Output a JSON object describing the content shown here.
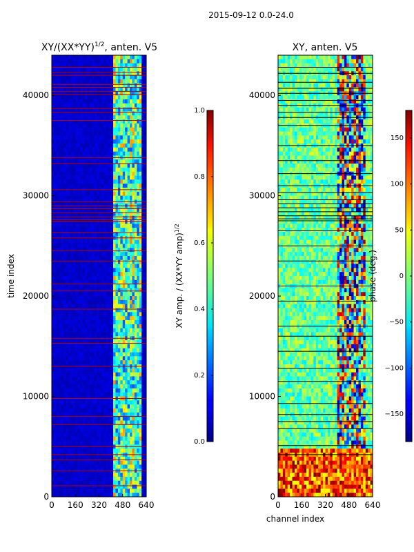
{
  "figure": {
    "suptitle": "2015-09-12 0.0-24.0"
  },
  "chart_data": [
    {
      "type": "heatmap",
      "title_main": "XY/(XX*YY)",
      "title_sup": "1/2",
      "title_rest": ", anten. V5",
      "xlabel": "",
      "ylabel": "time index",
      "xlim": [
        0,
        640
      ],
      "ylim": [
        0,
        44000
      ],
      "xticks": [
        0,
        160,
        320,
        480,
        640
      ],
      "yticks": [
        0,
        10000,
        20000,
        30000,
        40000
      ],
      "background_value": 0.05,
      "active_band_channels": [
        410,
        600
      ],
      "line_rows": [
        1100,
        2600,
        3700,
        4200,
        5000,
        7200,
        8000,
        9800,
        13000,
        15300,
        15800,
        18700,
        20500,
        21200,
        23500,
        24500,
        25800,
        26300,
        27400,
        27600,
        27900,
        28300,
        28700,
        29000,
        29400,
        30600,
        33200,
        33800,
        37500,
        38300,
        38700,
        40100,
        40400,
        40800,
        41100,
        42000,
        42300,
        42800
      ]
    },
    {
      "type": "heatmap",
      "title": "XY, anten. V5",
      "xlabel": "channel index",
      "ylabel": "",
      "xlim": [
        0,
        640
      ],
      "ylim": [
        0,
        44000
      ],
      "xticks": [
        0,
        160,
        320,
        480,
        640
      ],
      "yticks": [
        0,
        10000,
        20000,
        30000,
        40000
      ],
      "line_rows": [
        4200,
        5100,
        6800,
        7500,
        8200,
        9300,
        11500,
        12800,
        14500,
        16000,
        17000,
        19500,
        21000,
        23500,
        25000,
        26500,
        27500,
        27700,
        28000,
        28400,
        28800,
        29200,
        29600,
        30300,
        31000,
        32200,
        33500,
        35000,
        37000,
        37800,
        38300,
        39000,
        39500,
        40200,
        40700,
        41300,
        42200,
        42800
      ]
    }
  ],
  "colorbars": [
    {
      "label_main": "XY amp. / (XX*YY amp)",
      "label_sup": "1/2",
      "range": [
        0.0,
        1.0
      ],
      "ticks": [
        "0.0",
        "0.2",
        "0.4",
        "0.6",
        "0.8",
        "1.0"
      ],
      "tick_values": [
        0.0,
        0.2,
        0.4,
        0.6,
        0.8,
        1.0
      ]
    },
    {
      "label": "phase (deg.)",
      "range": [
        -180,
        180
      ],
      "ticks": [
        "−150",
        "−100",
        "−50",
        "0",
        "50",
        "100",
        "150"
      ],
      "tick_values": [
        -150,
        -100,
        -50,
        0,
        50,
        100,
        150
      ]
    }
  ]
}
